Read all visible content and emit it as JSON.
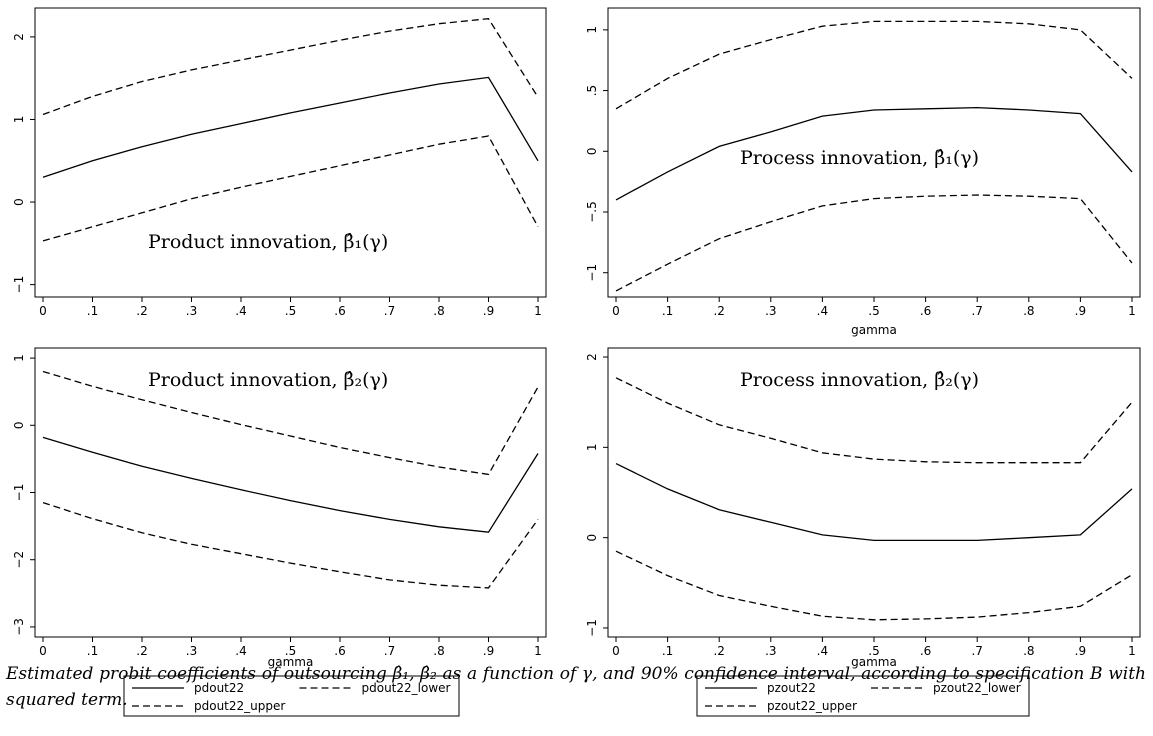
{
  "chart_data": [
    {
      "type": "line",
      "x": [
        0,
        0.1,
        0.2,
        0.3,
        0.4,
        0.5,
        0.6,
        0.7,
        0.8,
        0.9,
        1
      ],
      "xticks": [
        "0",
        ".1",
        ".2",
        ".3",
        ".4",
        ".5",
        ".6",
        ".7",
        ".8",
        ".9",
        "1"
      ],
      "yticks": [
        "−1",
        "0",
        "1",
        "2"
      ],
      "ytick_values": [
        -1,
        0,
        1,
        2
      ],
      "xlim": [
        0,
        1
      ],
      "ylim": [
        -1.15,
        2.35
      ],
      "xlabel": "",
      "annotation": "Product innovation, β̂₁(γ)",
      "legend": [],
      "series": [
        {
          "name": "pdout22",
          "style": "solid",
          "values": [
            0.3,
            0.5,
            0.67,
            0.82,
            0.95,
            1.08,
            1.2,
            1.32,
            1.43,
            1.51,
            0.5
          ]
        },
        {
          "name": "pdout22_lower",
          "style": "dashed",
          "values": [
            -0.47,
            -0.3,
            -0.13,
            0.04,
            0.18,
            0.31,
            0.44,
            0.57,
            0.7,
            0.8,
            -0.3
          ]
        },
        {
          "name": "pdout22_upper",
          "style": "dashed",
          "values": [
            1.06,
            1.28,
            1.46,
            1.6,
            1.72,
            1.84,
            1.96,
            2.07,
            2.16,
            2.22,
            1.27
          ]
        }
      ]
    },
    {
      "type": "line",
      "x": [
        0,
        0.1,
        0.2,
        0.3,
        0.4,
        0.5,
        0.6,
        0.7,
        0.8,
        0.9,
        1
      ],
      "xticks": [
        "0",
        ".1",
        ".2",
        ".3",
        ".4",
        ".5",
        ".6",
        ".7",
        ".8",
        ".9",
        "1"
      ],
      "yticks": [
        "−1",
        "−.5",
        "0",
        ".5",
        "1"
      ],
      "ytick_values": [
        -1,
        -0.5,
        0,
        0.5,
        1
      ],
      "xlim": [
        0,
        1
      ],
      "ylim": [
        -1.2,
        1.18
      ],
      "xlabel": "gamma",
      "annotation": "Process innovation, β̂₁(γ)",
      "legend": [],
      "series": [
        {
          "name": "pzout22",
          "style": "solid",
          "values": [
            -0.4,
            -0.17,
            0.04,
            0.16,
            0.29,
            0.34,
            0.35,
            0.36,
            0.34,
            0.31,
            -0.17
          ]
        },
        {
          "name": "pzout22_lower",
          "style": "dashed",
          "values": [
            -1.15,
            -0.93,
            -0.72,
            -0.58,
            -0.45,
            -0.39,
            -0.37,
            -0.36,
            -0.37,
            -0.39,
            -0.92
          ]
        },
        {
          "name": "pzout22_upper",
          "style": "dashed",
          "values": [
            0.35,
            0.6,
            0.8,
            0.92,
            1.03,
            1.07,
            1.07,
            1.07,
            1.05,
            1.0,
            0.6
          ]
        }
      ]
    },
    {
      "type": "line",
      "x": [
        0,
        0.1,
        0.2,
        0.3,
        0.4,
        0.5,
        0.6,
        0.7,
        0.8,
        0.9,
        1
      ],
      "xticks": [
        "0",
        ".1",
        ".2",
        ".3",
        ".4",
        ".5",
        ".6",
        ".7",
        ".8",
        ".9",
        "1"
      ],
      "yticks": [
        "−3",
        "−2",
        "−1",
        "0",
        "1"
      ],
      "ytick_values": [
        -3,
        -2,
        -1,
        0,
        1
      ],
      "xlim": [
        0,
        1
      ],
      "ylim": [
        -3.15,
        1.15
      ],
      "xlabel": "gamma",
      "annotation": "Product innovation, β̂₂(γ)",
      "legend": [
        {
          "label": "pdout22",
          "style": "solid"
        },
        {
          "label": "pdout22_lower",
          "style": "dashed"
        },
        {
          "label": "pdout22_upper",
          "style": "dashed"
        }
      ],
      "series": [
        {
          "name": "pdout22",
          "style": "solid",
          "values": [
            -0.18,
            -0.4,
            -0.61,
            -0.79,
            -0.96,
            -1.12,
            -1.27,
            -1.4,
            -1.51,
            -1.59,
            -0.42
          ]
        },
        {
          "name": "pdout22_lower",
          "style": "dashed",
          "values": [
            -1.15,
            -1.39,
            -1.6,
            -1.77,
            -1.91,
            -2.05,
            -2.18,
            -2.3,
            -2.38,
            -2.42,
            -1.4
          ]
        },
        {
          "name": "pdout22_upper",
          "style": "dashed",
          "values": [
            0.8,
            0.58,
            0.38,
            0.19,
            0.01,
            -0.16,
            -0.33,
            -0.48,
            -0.62,
            -0.73,
            0.57
          ]
        }
      ]
    },
    {
      "type": "line",
      "x": [
        0,
        0.1,
        0.2,
        0.3,
        0.4,
        0.5,
        0.6,
        0.7,
        0.8,
        0.9,
        1
      ],
      "xticks": [
        "0",
        ".1",
        ".2",
        ".3",
        ".4",
        ".5",
        ".6",
        ".7",
        ".8",
        ".9",
        "1"
      ],
      "yticks": [
        "−1",
        "0",
        "1",
        "2"
      ],
      "ytick_values": [
        -1,
        0,
        1,
        2
      ],
      "xlim": [
        0,
        1
      ],
      "ylim": [
        -1.1,
        2.1
      ],
      "xlabel": "gamma",
      "annotation": "Process innovation, β̂₂(γ)",
      "legend": [
        {
          "label": "pzout22",
          "style": "solid"
        },
        {
          "label": "pzout22_lower",
          "style": "dashed"
        },
        {
          "label": "pzout22_upper",
          "style": "dashed"
        }
      ],
      "series": [
        {
          "name": "pzout22",
          "style": "solid",
          "values": [
            0.82,
            0.54,
            0.31,
            0.17,
            0.03,
            -0.03,
            -0.03,
            -0.03,
            0.0,
            0.03,
            0.54
          ]
        },
        {
          "name": "pzout22_lower",
          "style": "dashed",
          "values": [
            -0.15,
            -0.42,
            -0.64,
            -0.76,
            -0.87,
            -0.91,
            -0.9,
            -0.88,
            -0.83,
            -0.76,
            -0.41
          ]
        },
        {
          "name": "pzout22_upper",
          "style": "dashed",
          "values": [
            1.77,
            1.49,
            1.25,
            1.1,
            0.94,
            0.87,
            0.84,
            0.83,
            0.83,
            0.83,
            1.5
          ]
        }
      ]
    }
  ],
  "caption": "Estimated probit coefficients of outsourcing β̂₁, β̂₂ as a function of γ, and 90% confidence interval, according to specification B with squared term."
}
